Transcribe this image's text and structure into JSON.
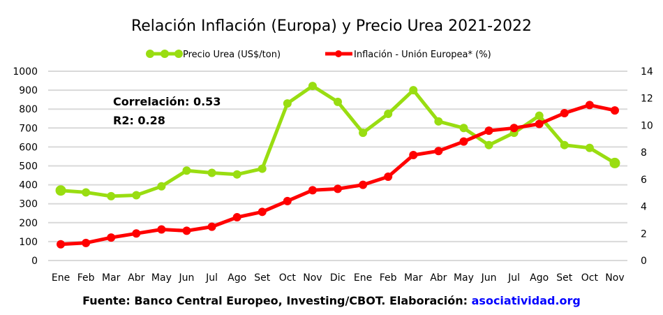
{
  "chart_data": {
    "type": "line",
    "title": "Relación Inflación (Europa) y Precio Urea 2021-2022",
    "categories": [
      "Ene",
      "Feb",
      "Mar",
      "Abr",
      "May",
      "Jun",
      "Jul",
      "Ago",
      "Set",
      "Oct",
      "Nov",
      "Dic",
      "Ene",
      "Feb",
      "Mar",
      "Abr",
      "May",
      "Jun",
      "Jul",
      "Ago",
      "Set",
      "Oct",
      "Nov"
    ],
    "series": [
      {
        "name": "Precio Urea (US$/ton)",
        "axis": "left",
        "color": "#99dd11",
        "values": [
          370,
          360,
          340,
          345,
          392,
          475,
          463,
          455,
          485,
          830,
          922,
          838,
          675,
          775,
          900,
          735,
          700,
          610,
          675,
          765,
          610,
          595,
          515
        ]
      },
      {
        "name": "Inflación - Unión Europea* (%)",
        "axis": "right",
        "color": "#ff0000",
        "values": [
          1.2,
          1.3,
          1.7,
          2.0,
          2.3,
          2.2,
          2.5,
          3.2,
          3.6,
          4.4,
          5.2,
          5.3,
          5.6,
          6.2,
          7.8,
          8.1,
          8.8,
          9.6,
          9.8,
          10.1,
          10.9,
          11.5,
          11.1
        ]
      }
    ],
    "y_left": {
      "ylim": [
        0,
        1000
      ],
      "ticks": [
        "0",
        "100",
        "200",
        "300",
        "400",
        "500",
        "600",
        "700",
        "800",
        "900",
        "1000"
      ]
    },
    "y_right": {
      "ylim": [
        0,
        14
      ],
      "ticks": [
        "0",
        "2",
        "4",
        "6",
        "8",
        "10",
        "12",
        "14"
      ]
    },
    "xlabel": "",
    "ylabel": "",
    "grid": true,
    "legend_position": "top-center",
    "annotations": [
      "Correlación: 0.53",
      "R2: 0.28"
    ]
  },
  "footer": {
    "source_text": "Fuente: Banco Central Europeo, Investing/CBOT. Elaboración: ",
    "source_link": "asociatividad.org"
  }
}
